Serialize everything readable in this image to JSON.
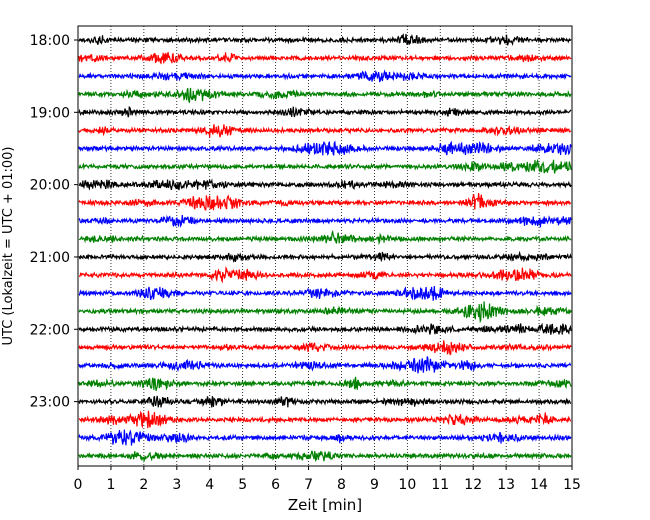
{
  "chart_data": {
    "type": "line",
    "title": "",
    "xlabel": "Zeit  [min]",
    "ylabel": "UTC (Lokalzeit = UTC + 01:00)",
    "xlim": [
      0,
      15
    ],
    "x_ticks": [
      "0",
      "1",
      "2",
      "3",
      "4",
      "5",
      "6",
      "7",
      "8",
      "9",
      "10",
      "11",
      "12",
      "13",
      "14",
      "15"
    ],
    "y_ticks": [
      "18:00",
      "19:00",
      "20:00",
      "21:00",
      "22:00",
      "23:00"
    ],
    "grid": "vertical dotted lines at each minute",
    "legend": "none",
    "trace_interval_minutes": 15,
    "trace_count": 24,
    "colors": [
      "#000000",
      "#ff0000",
      "#0000ff",
      "#008000"
    ],
    "series": [
      {
        "start": "18:00",
        "color": "#000000"
      },
      {
        "start": "18:15",
        "color": "#ff0000"
      },
      {
        "start": "18:30",
        "color": "#0000ff"
      },
      {
        "start": "18:45",
        "color": "#008000"
      },
      {
        "start": "19:00",
        "color": "#000000"
      },
      {
        "start": "19:15",
        "color": "#ff0000"
      },
      {
        "start": "19:30",
        "color": "#0000ff"
      },
      {
        "start": "19:45",
        "color": "#008000"
      },
      {
        "start": "20:00",
        "color": "#000000"
      },
      {
        "start": "20:15",
        "color": "#ff0000"
      },
      {
        "start": "20:30",
        "color": "#0000ff"
      },
      {
        "start": "20:45",
        "color": "#008000"
      },
      {
        "start": "21:00",
        "color": "#000000"
      },
      {
        "start": "21:15",
        "color": "#ff0000"
      },
      {
        "start": "21:30",
        "color": "#0000ff"
      },
      {
        "start": "21:45",
        "color": "#008000"
      },
      {
        "start": "22:00",
        "color": "#000000"
      },
      {
        "start": "22:15",
        "color": "#ff0000"
      },
      {
        "start": "22:30",
        "color": "#0000ff"
      },
      {
        "start": "22:45",
        "color": "#008000"
      },
      {
        "start": "23:00",
        "color": "#000000"
      },
      {
        "start": "23:15",
        "color": "#ff0000"
      },
      {
        "start": "23:30",
        "color": "#0000ff"
      },
      {
        "start": "23:45",
        "color": "#008000"
      }
    ]
  }
}
